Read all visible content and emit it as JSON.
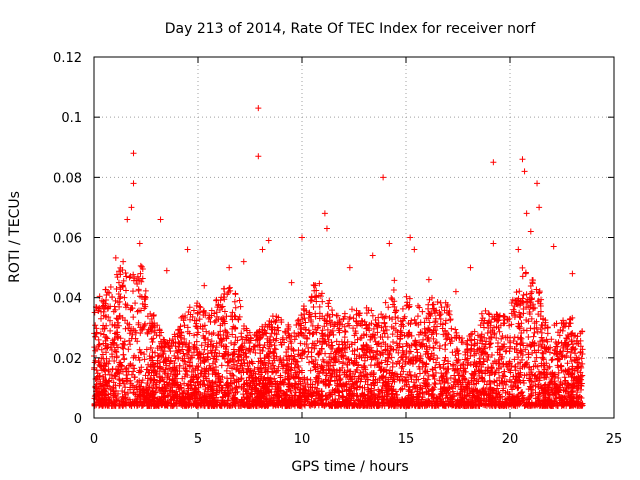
{
  "chart_data": {
    "type": "scatter",
    "title": "Day 213 of 2014, Rate Of TEC Index for receiver norf",
    "xlabel": "GPS time / hours",
    "ylabel": "ROTI / TECUs",
    "xlim": [
      0,
      25
    ],
    "ylim": [
      0,
      0.12
    ],
    "grid": true,
    "marker": "+",
    "color": "#ff0000",
    "x_ticks": [
      0,
      5,
      10,
      15,
      20,
      25
    ],
    "x_tick_labels": [
      "0",
      "5",
      "10",
      "15",
      "20",
      "25"
    ],
    "y_ticks": [
      0,
      0.02,
      0.04,
      0.06,
      0.08,
      0.1,
      0.12
    ],
    "y_tick_labels": [
      "0",
      "0.02",
      "0.04",
      "0.06",
      "0.08",
      "0.1",
      "0.12"
    ],
    "series": [
      {
        "name": "ROTI",
        "x_range_hours": [
          0,
          23.5
        ],
        "note": "dense cloud of per-satellite ROTI samples, mostly 0.005-0.04 TECU/min",
        "points": [
          {
            "x": 0.3,
            "y": 0.012
          },
          {
            "x": 0.6,
            "y": 0.018
          },
          {
            "x": 0.9,
            "y": 0.025
          },
          {
            "x": 1.2,
            "y": 0.045
          },
          {
            "x": 1.4,
            "y": 0.052
          },
          {
            "x": 1.6,
            "y": 0.066
          },
          {
            "x": 1.8,
            "y": 0.07
          },
          {
            "x": 1.9,
            "y": 0.078
          },
          {
            "x": 1.9,
            "y": 0.088
          },
          {
            "x": 2.2,
            "y": 0.058
          },
          {
            "x": 3.2,
            "y": 0.066
          },
          {
            "x": 3.5,
            "y": 0.049
          },
          {
            "x": 4.5,
            "y": 0.056
          },
          {
            "x": 5.3,
            "y": 0.044
          },
          {
            "x": 6.5,
            "y": 0.05
          },
          {
            "x": 7.2,
            "y": 0.052
          },
          {
            "x": 7.9,
            "y": 0.103
          },
          {
            "x": 7.9,
            "y": 0.087
          },
          {
            "x": 8.1,
            "y": 0.056
          },
          {
            "x": 8.4,
            "y": 0.059
          },
          {
            "x": 9.5,
            "y": 0.045
          },
          {
            "x": 10.0,
            "y": 0.06
          },
          {
            "x": 11.1,
            "y": 0.068
          },
          {
            "x": 11.2,
            "y": 0.063
          },
          {
            "x": 12.3,
            "y": 0.05
          },
          {
            "x": 13.4,
            "y": 0.054
          },
          {
            "x": 13.9,
            "y": 0.08
          },
          {
            "x": 14.2,
            "y": 0.058
          },
          {
            "x": 15.2,
            "y": 0.06
          },
          {
            "x": 15.4,
            "y": 0.056
          },
          {
            "x": 16.1,
            "y": 0.046
          },
          {
            "x": 17.4,
            "y": 0.042
          },
          {
            "x": 18.1,
            "y": 0.05
          },
          {
            "x": 19.2,
            "y": 0.085
          },
          {
            "x": 19.2,
            "y": 0.058
          },
          {
            "x": 20.4,
            "y": 0.056
          },
          {
            "x": 20.6,
            "y": 0.086
          },
          {
            "x": 20.7,
            "y": 0.082
          },
          {
            "x": 20.8,
            "y": 0.068
          },
          {
            "x": 21.0,
            "y": 0.062
          },
          {
            "x": 21.3,
            "y": 0.078
          },
          {
            "x": 21.4,
            "y": 0.07
          },
          {
            "x": 22.1,
            "y": 0.057
          },
          {
            "x": 23.0,
            "y": 0.048
          },
          {
            "x": 23.4,
            "y": 0.022
          }
        ]
      }
    ]
  }
}
